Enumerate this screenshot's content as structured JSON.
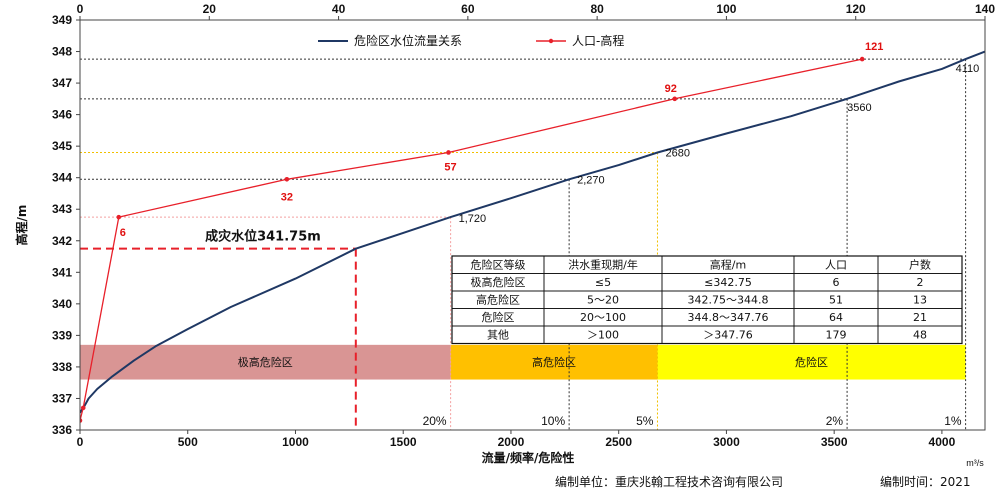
{
  "chart_data": {
    "type": "line",
    "x_bottom": {
      "label": "流量/频率/危险性",
      "unit": "m³/s",
      "range": [
        0,
        4200
      ],
      "ticks": [
        0,
        500,
        1000,
        1500,
        2000,
        2500,
        3000,
        3500,
        4000
      ]
    },
    "x_top": {
      "range": [
        0,
        140
      ],
      "ticks": [
        0,
        20,
        40,
        60,
        80,
        100,
        120,
        140
      ]
    },
    "y": {
      "label": "高程/m",
      "range": [
        336,
        349
      ],
      "ticks": [
        336,
        337,
        338,
        339,
        340,
        341,
        342,
        343,
        344,
        345,
        346,
        347,
        348,
        349
      ]
    },
    "legend": [
      "危险区水位流量关系",
      "人口-高程"
    ],
    "series": [
      {
        "name": "危险区水位流量关系",
        "color": "#1f3864",
        "axis": "bottom",
        "points": [
          [
            0,
            336.55
          ],
          [
            20,
            336.75
          ],
          [
            40,
            337.0
          ],
          [
            80,
            337.3
          ],
          [
            150,
            337.7
          ],
          [
            250,
            338.2
          ],
          [
            350,
            338.65
          ],
          [
            500,
            339.2
          ],
          [
            700,
            339.9
          ],
          [
            1000,
            340.8
          ],
          [
            1280,
            341.75
          ],
          [
            1500,
            342.25
          ],
          [
            1720,
            342.75
          ],
          [
            2000,
            343.35
          ],
          [
            2270,
            343.95
          ],
          [
            2500,
            344.4
          ],
          [
            2680,
            344.8
          ],
          [
            3000,
            345.4
          ],
          [
            3300,
            345.95
          ],
          [
            3560,
            346.5
          ],
          [
            3800,
            347.05
          ],
          [
            4000,
            347.45
          ],
          [
            4110,
            347.76
          ],
          [
            4200,
            348.0
          ]
        ],
        "point_labels": [
          {
            "x": 1720,
            "y": 342.75,
            "text": "1,720"
          },
          {
            "x": 2270,
            "y": 343.95,
            "text": "2,270"
          },
          {
            "x": 2680,
            "y": 344.8,
            "text": "2680"
          },
          {
            "x": 3560,
            "y": 346.5,
            "text": "3560"
          },
          {
            "x": 4110,
            "y": 347.76,
            "text": "4110"
          }
        ]
      },
      {
        "name": "人口-高程",
        "color": "#e8202a",
        "axis": "top",
        "points": [
          [
            0,
            336.3
          ],
          [
            0.5,
            336.7
          ],
          [
            6,
            342.75
          ],
          [
            32,
            343.95
          ],
          [
            57,
            344.8
          ],
          [
            92,
            346.5
          ],
          [
            121,
            347.76
          ]
        ],
        "point_labels": [
          {
            "x": 6,
            "y": 342.75,
            "text": "6"
          },
          {
            "x": 32,
            "y": 343.95,
            "text": "32"
          },
          {
            "x": 57,
            "y": 344.8,
            "text": "57"
          },
          {
            "x": 92,
            "y": 346.5,
            "text": "92"
          },
          {
            "x": 121,
            "y": 347.76,
            "text": "121"
          }
        ]
      }
    ],
    "guides": [
      {
        "y": 342.75,
        "x_end": 1720,
        "color": "#f4a0a0"
      },
      {
        "y": 343.95,
        "x_end": 2270,
        "color": "#333333"
      },
      {
        "y": 344.8,
        "x_end": 2680,
        "color": "#f0c000"
      },
      {
        "y": 346.5,
        "x_end": 3560,
        "color": "#333333"
      },
      {
        "y": 347.76,
        "x_end": 4110,
        "color": "#333333"
      }
    ],
    "disaster_level": {
      "label": "成灾水位341.75m",
      "y": 341.75,
      "x": 1280,
      "color": "#e8202a"
    },
    "zones": [
      {
        "label": "极高危险区",
        "x_start": 0,
        "x_end": 1720,
        "color": "#d99594"
      },
      {
        "label": "高危险区",
        "x_start": 1720,
        "x_end": 2680,
        "color": "#ffc000"
      },
      {
        "label": "危险区",
        "x_start": 2680,
        "x_end": 4110,
        "color": "#ffff00"
      }
    ],
    "zone_y": [
      337.6,
      338.7
    ],
    "frequency_labels": [
      {
        "x": 1720,
        "text": "20%"
      },
      {
        "x": 2270,
        "text": "10%"
      },
      {
        "x": 2680,
        "text": "5%"
      },
      {
        "x": 3560,
        "text": "2%"
      },
      {
        "x": 4110,
        "text": "1%"
      }
    ],
    "table": {
      "headers": [
        "危险区等级",
        "洪水重现期/年",
        "高程/m",
        "人口",
        "户数"
      ],
      "rows": [
        [
          "极高危险区",
          "≤5",
          "≤342.75",
          "6",
          "2"
        ],
        [
          "高危险区",
          "5～20",
          "342.75～344.8",
          "51",
          "13"
        ],
        [
          "危险区",
          "20～100",
          "344.8～347.76",
          "64",
          "21"
        ],
        [
          "其他",
          "＞100",
          "＞347.76",
          "179",
          "48"
        ]
      ]
    }
  },
  "footer": {
    "unit_label": "编制单位：重庆兆翰工程技术咨询有限公司",
    "time_label": "编制时间：2021"
  }
}
